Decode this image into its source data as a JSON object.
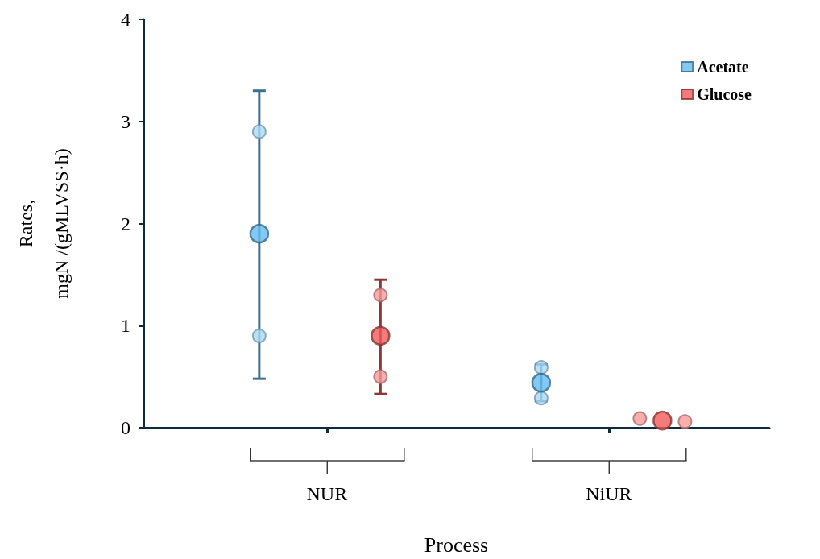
{
  "chart_data": {
    "type": "scatter",
    "xlabel": "Process",
    "ylabel": "Rates,\nmgN /(gMLVSS·h)",
    "categories": [
      "NUR",
      "NiUR"
    ],
    "ylim": [
      0,
      4
    ],
    "yticks": [
      0,
      1,
      2,
      3,
      4
    ],
    "grid": false,
    "legend": "top right",
    "marker": "circle",
    "series": [
      {
        "name": "Acetate",
        "color": "#63bdf0",
        "values": [
          1.9,
          0.44
        ],
        "errors": [
          [
            0.48,
            3.3
          ],
          [
            0.26,
            0.62
          ]
        ]
      },
      {
        "name": "Glucose",
        "color": "#f25a5a",
        "values": [
          0.9,
          0.07
        ],
        "errors": [
          [
            0.33,
            1.45
          ],
          null
        ]
      },
      {
        "color": "#a9daf6",
        "x": [
          "NUR",
          "NUR",
          "NiUR",
          "NiUR"
        ],
        "values": [
          2.9,
          0.9,
          0.59,
          0.29
        ]
      },
      {
        "color": "#f79a9a",
        "x": [
          "NUR",
          "NUR",
          "NiUR",
          "NiUR"
        ],
        "values": [
          1.3,
          0.5,
          0.09,
          0.06
        ]
      }
    ]
  }
}
